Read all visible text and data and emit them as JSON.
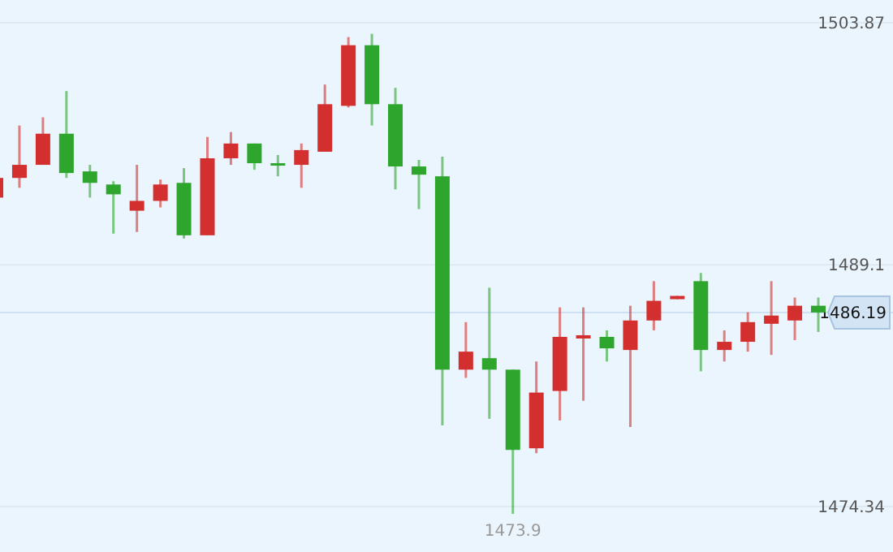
{
  "chart_data": {
    "type": "candlestick",
    "categories": [
      null,
      null,
      null,
      null,
      null,
      null,
      null,
      null,
      null,
      null,
      null,
      null,
      null,
      null,
      null,
      null,
      null,
      null,
      null,
      null,
      null,
      null,
      null,
      null,
      null,
      null,
      null,
      null,
      null,
      null,
      null,
      null,
      null,
      null,
      null,
      null
    ],
    "ohlc": [
      [
        1493.2,
        1494.6,
        1493.1,
        1494.4
      ],
      [
        1494.4,
        1497.6,
        1493.8,
        1495.2
      ],
      [
        1495.2,
        1498.1,
        1495.2,
        1497.1
      ],
      [
        1497.1,
        1499.7,
        1494.4,
        1494.7
      ],
      [
        1494.8,
        1495.2,
        1493.2,
        1494.1
      ],
      [
        1494.0,
        1494.2,
        1491.0,
        1493.4
      ],
      [
        1492.4,
        1495.2,
        1491.1,
        1493.0
      ],
      [
        1493.0,
        1494.3,
        1492.6,
        1494.0
      ],
      [
        1494.1,
        1495.0,
        1490.7,
        1490.9
      ],
      [
        1490.9,
        1496.9,
        1490.9,
        1495.6
      ],
      [
        1495.6,
        1497.2,
        1495.2,
        1496.5
      ],
      [
        1496.5,
        1496.5,
        1494.9,
        1495.3
      ],
      [
        1495.3,
        1495.8,
        1494.5,
        1495.2
      ],
      [
        1495.2,
        1496.5,
        1493.8,
        1496.1
      ],
      [
        1496.0,
        1500.1,
        1496.0,
        1498.9
      ],
      [
        1498.8,
        1503.0,
        1498.7,
        1502.5
      ],
      [
        1502.5,
        1503.2,
        1497.6,
        1498.9
      ],
      [
        1498.9,
        1499.9,
        1493.7,
        1495.1
      ],
      [
        1495.1,
        1495.5,
        1492.5,
        1494.6
      ],
      [
        1494.5,
        1495.7,
        1479.3,
        1482.7
      ],
      [
        1482.7,
        1485.6,
        1482.2,
        1483.8
      ],
      [
        1483.4,
        1487.7,
        1479.7,
        1482.7
      ],
      [
        1482.7,
        1482.7,
        1473.9,
        1477.8
      ],
      [
        1477.9,
        1483.2,
        1477.6,
        1481.3
      ],
      [
        1481.4,
        1486.5,
        1479.6,
        1484.7
      ],
      [
        1484.6,
        1486.5,
        1480.8,
        1484.8
      ],
      [
        1484.7,
        1485.1,
        1483.2,
        1484.0
      ],
      [
        1483.9,
        1486.6,
        1479.2,
        1485.7
      ],
      [
        1485.7,
        1488.1,
        1485.1,
        1486.9
      ],
      [
        1487.0,
        1487.2,
        1487.0,
        1487.2
      ],
      [
        1488.1,
        1488.6,
        1482.6,
        1483.9
      ],
      [
        1483.9,
        1485.1,
        1483.2,
        1484.4
      ],
      [
        1484.4,
        1486.2,
        1483.8,
        1485.6
      ],
      [
        1485.5,
        1488.1,
        1483.6,
        1486.0
      ],
      [
        1485.7,
        1487.1,
        1484.5,
        1486.6
      ],
      [
        1486.6,
        1487.1,
        1485.0,
        1486.19
      ]
    ],
    "colors": [
      "#d32f2f",
      "#d32f2f",
      "#d32f2f",
      "#2ea62e",
      "#2ea62e",
      "#2ea62e",
      "#d32f2f",
      "#d32f2f",
      "#2ea62e",
      "#d32f2f",
      "#d32f2f",
      "#2ea62e",
      "#2ea62e",
      "#d32f2f",
      "#d32f2f",
      "#d32f2f",
      "#2ea62e",
      "#2ea62e",
      "#2ea62e",
      "#2ea62e",
      "#d32f2f",
      "#2ea62e",
      "#2ea62e",
      "#d32f2f",
      "#d32f2f",
      "#d32f2f",
      "#2ea62e",
      "#d32f2f",
      "#d32f2f",
      "#d32f2f",
      "#2ea62e",
      "#d32f2f",
      "#d32f2f",
      "#d32f2f",
      "#d32f2f",
      "#2ea62e"
    ],
    "ylim": [
      1471.57,
      1505.26
    ],
    "yticks": [
      1503.87,
      1489.1,
      1474.34
    ],
    "grid": "y",
    "ref_lines": [
      {
        "axis": "y",
        "value": 1486.19,
        "label": "1486.19",
        "color": "#cfe0f2"
      }
    ],
    "annotations": [
      {
        "text": "1473.9",
        "y": 1473.9
      }
    ]
  }
}
